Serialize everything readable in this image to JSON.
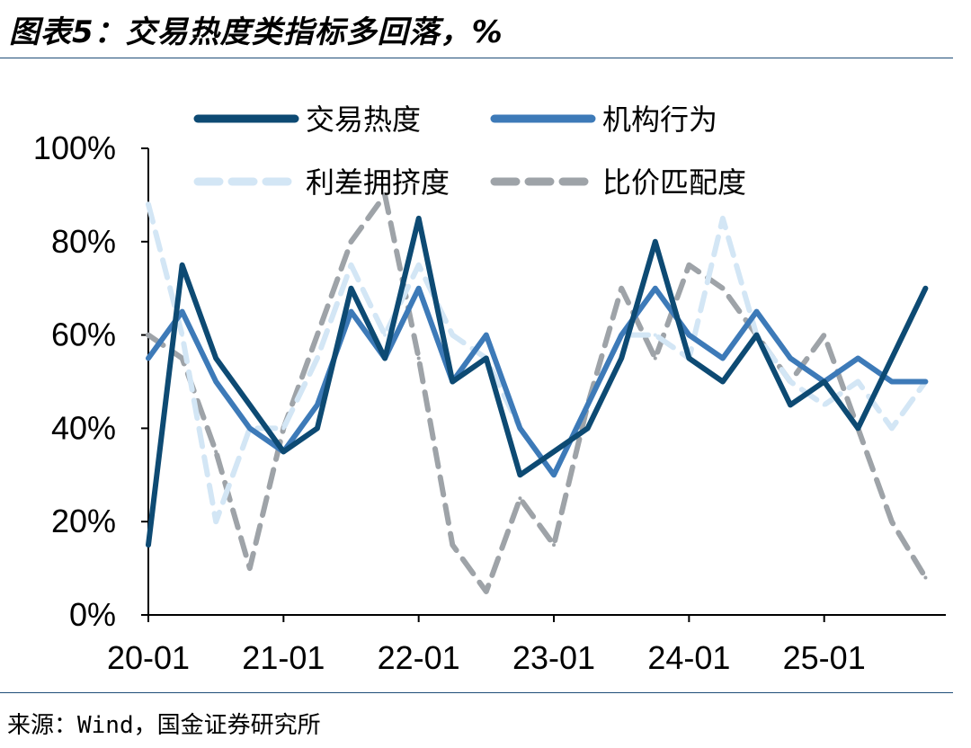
{
  "title": "图表5：交易热度类指标多回落，%",
  "source": "来源：Wind，国金证券研究所",
  "chart_data": {
    "type": "line",
    "x": [
      "2020-01",
      "2020-04",
      "2020-07",
      "2020-10",
      "2021-01",
      "2021-04",
      "2021-07",
      "2021-10",
      "2022-01",
      "2022-04",
      "2022-07",
      "2022-10",
      "2023-01",
      "2023-04",
      "2023-07",
      "2023-10",
      "2024-01",
      "2024-04",
      "2024-07",
      "2024-10",
      "2025-01",
      "2025-04",
      "2025-07",
      "2025-10"
    ],
    "x_tick_labels": [
      "20-01",
      "21-01",
      "22-01",
      "23-01",
      "24-01",
      "25-01"
    ],
    "y_tick_labels": [
      "0%",
      "20%",
      "40%",
      "60%",
      "80%",
      "100%"
    ],
    "ylim": [
      0,
      100
    ],
    "legend_position": "top",
    "series": [
      {
        "name": "交易热度",
        "color": "#0d4a73",
        "style": "solid",
        "values": [
          15,
          75,
          55,
          45,
          35,
          40,
          70,
          55,
          85,
          50,
          55,
          30,
          35,
          40,
          55,
          80,
          55,
          50,
          60,
          45,
          50,
          40,
          55,
          70
        ]
      },
      {
        "name": "机构行为",
        "color": "#3d7ab8",
        "style": "solid",
        "values": [
          55,
          65,
          50,
          40,
          35,
          45,
          65,
          55,
          70,
          50,
          60,
          40,
          30,
          45,
          60,
          70,
          60,
          55,
          65,
          55,
          50,
          55,
          50,
          50
        ]
      },
      {
        "name": "利差拥挤度",
        "color": "#d3e6f5",
        "style": "dashed",
        "values": [
          88,
          60,
          20,
          40,
          40,
          55,
          75,
          60,
          75,
          60,
          55,
          40,
          30,
          45,
          60,
          60,
          55,
          85,
          60,
          50,
          45,
          50,
          40,
          50
        ]
      },
      {
        "name": "比价匹配度",
        "color": "#9ea3a8",
        "style": "dashed",
        "values": [
          60,
          55,
          35,
          10,
          40,
          60,
          80,
          90,
          55,
          15,
          5,
          25,
          15,
          45,
          70,
          55,
          75,
          70,
          60,
          50,
          60,
          40,
          20,
          8
        ]
      }
    ]
  }
}
